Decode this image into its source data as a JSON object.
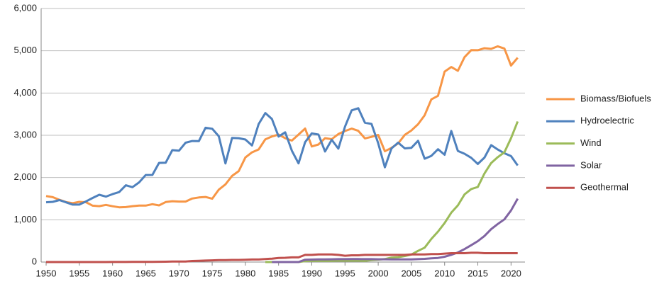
{
  "chart_data": {
    "type": "line",
    "x": [
      1950,
      1951,
      1952,
      1953,
      1954,
      1955,
      1956,
      1957,
      1958,
      1959,
      1960,
      1961,
      1962,
      1963,
      1964,
      1965,
      1966,
      1967,
      1968,
      1969,
      1970,
      1971,
      1972,
      1973,
      1974,
      1975,
      1976,
      1977,
      1978,
      1979,
      1980,
      1981,
      1982,
      1983,
      1984,
      1985,
      1986,
      1987,
      1988,
      1989,
      1990,
      1991,
      1992,
      1993,
      1994,
      1995,
      1996,
      1997,
      1998,
      1999,
      2000,
      2001,
      2002,
      2003,
      2004,
      2005,
      2006,
      2007,
      2008,
      2009,
      2010,
      2011,
      2012,
      2013,
      2014,
      2015,
      2016,
      2017,
      2018,
      2019,
      2020,
      2021
    ],
    "series": [
      {
        "name": "Biomass/Biofuels",
        "color": "#f79646",
        "values": [
          1562,
          1535,
          1474,
          1419,
          1394,
          1424,
          1416,
          1334,
          1323,
          1353,
          1320,
          1295,
          1300,
          1323,
          1337,
          1335,
          1369,
          1340,
          1419,
          1440,
          1431,
          1432,
          1503,
          1529,
          1540,
          1499,
          1713,
          1838,
          2038,
          2152,
          2476,
          2596,
          2664,
          2904,
          2971,
          3016,
          2932,
          2875,
          3016,
          3160,
          2735,
          2782,
          2932,
          2908,
          3028,
          3101,
          3157,
          3105,
          2927,
          2963,
          3008,
          2622,
          2701,
          2807,
          3010,
          3114,
          3262,
          3474,
          3849,
          3933,
          4506,
          4615,
          4525,
          4848,
          5014,
          5013,
          5060,
          5045,
          5105,
          5052,
          4650,
          4835
        ]
      },
      {
        "name": "Hydroelectric",
        "color": "#4f81bd",
        "values": [
          1415,
          1424,
          1466,
          1413,
          1360,
          1360,
          1435,
          1516,
          1592,
          1548,
          1608,
          1656,
          1816,
          1771,
          1886,
          2059,
          2062,
          2347,
          2349,
          2648,
          2634,
          2824,
          2864,
          2861,
          3177,
          3155,
          2976,
          2333,
          2937,
          2931,
          2900,
          2758,
          3266,
          3527,
          3386,
          2970,
          3071,
          2635,
          2334,
          2837,
          3046,
          3016,
          2617,
          2892,
          2683,
          3205,
          3590,
          3640,
          3297,
          3268,
          2811,
          2242,
          2689,
          2825,
          2690,
          2703,
          2869,
          2446,
          2512,
          2669,
          2539,
          3103,
          2629,
          2562,
          2467,
          2321,
          2472,
          2767,
          2663,
          2575,
          2508,
          2286
        ]
      },
      {
        "name": "Wind",
        "color": "#9bbb59",
        "values": [
          null,
          null,
          null,
          null,
          null,
          null,
          null,
          null,
          null,
          null,
          null,
          null,
          null,
          null,
          null,
          null,
          null,
          null,
          null,
          null,
          null,
          null,
          null,
          null,
          null,
          null,
          null,
          null,
          null,
          null,
          null,
          null,
          null,
          0,
          0,
          0,
          0,
          0,
          0,
          22,
          29,
          31,
          30,
          31,
          36,
          33,
          33,
          34,
          31,
          46,
          57,
          70,
          105,
          115,
          142,
          178,
          264,
          341,
          546,
          721,
          923,
          1168,
          1340,
          1601,
          1728,
          1777,
          2096,
          2343,
          2482,
          2598,
          2930,
          3327
        ]
      },
      {
        "name": "Solar",
        "color": "#8064a2",
        "values": [
          null,
          null,
          null,
          null,
          null,
          null,
          null,
          null,
          null,
          null,
          null,
          null,
          null,
          null,
          null,
          null,
          null,
          null,
          null,
          null,
          null,
          null,
          null,
          null,
          null,
          null,
          null,
          null,
          null,
          null,
          null,
          null,
          null,
          null,
          0,
          0,
          0,
          0,
          0,
          55,
          59,
          62,
          64,
          66,
          68,
          69,
          70,
          70,
          69,
          68,
          66,
          65,
          63,
          62,
          63,
          63,
          68,
          76,
          89,
          98,
          126,
          171,
          227,
          307,
          399,
          494,
          616,
          777,
          900,
          1010,
          1220,
          1500
        ]
      },
      {
        "name": "Geothermal",
        "color": "#c0504d",
        "values": [
          0,
          0,
          0,
          0,
          0,
          0,
          0,
          0,
          0,
          0,
          1,
          2,
          2,
          3,
          4,
          4,
          4,
          7,
          9,
          13,
          11,
          12,
          25,
          30,
          35,
          40,
          45,
          45,
          50,
          50,
          55,
          60,
          60,
          70,
          80,
          95,
          100,
          110,
          110,
          170,
          170,
          180,
          180,
          180,
          170,
          150,
          160,
          160,
          170,
          170,
          170,
          170,
          170,
          170,
          170,
          180,
          180,
          180,
          190,
          190,
          200,
          210,
          210,
          210,
          220,
          220,
          210,
          210,
          210,
          210,
          210,
          210
        ]
      }
    ],
    "xlim": [
      1949.25,
      2022.1
    ],
    "xticks": [
      1950,
      1955,
      1960,
      1965,
      1970,
      1975,
      1980,
      1985,
      1990,
      1995,
      2000,
      2005,
      2010,
      2015,
      2020
    ],
    "ylim": [
      0,
      6000
    ],
    "yticks": [
      0,
      {
        "value": 1000,
        "label": "1,000"
      },
      {
        "value": 2000,
        "label": "2,000"
      },
      {
        "value": 3000,
        "label": "3,000"
      },
      {
        "value": 4000,
        "label": "4,000"
      },
      {
        "value": 5000,
        "label": "5,000"
      },
      {
        "value": 6000,
        "label": "6,000"
      }
    ],
    "grid": true,
    "legend": "right"
  }
}
